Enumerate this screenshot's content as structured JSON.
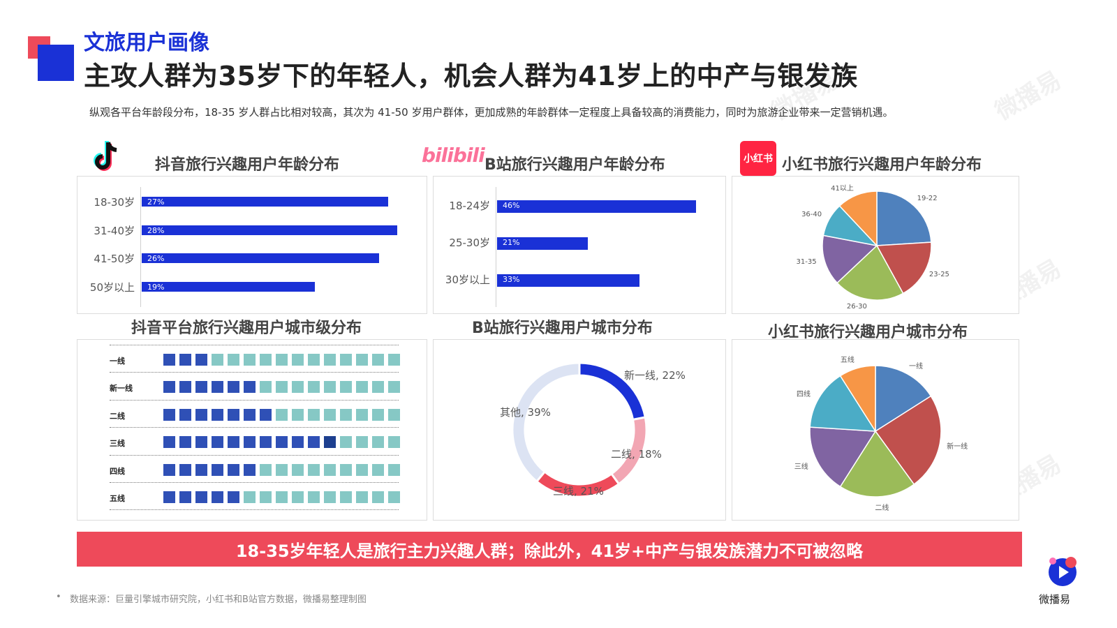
{
  "header": {
    "section": "文旅用户画像",
    "headline": "主攻人群为35岁下的年轻人，机会人群为41岁上的中产与银发族",
    "intro": "纵观各平台年龄段分布，18-35 岁人群占比相对较高，其次为 41-50 岁用户群体，更加成熟的年龄群体一定程度上具备较高的消费能力，同时为旅游企业带来一定营销机遇。"
  },
  "logos": {
    "bili": "bilibili",
    "xhs": "小红书"
  },
  "panel_titles": {
    "douyin_age": "抖音旅行兴趣用户年龄分布",
    "bili_age": "B站旅行兴趣用户年龄分布",
    "xhs_age": "小红书旅行兴趣用户年龄分布",
    "douyin_city": "抖音平台旅行兴趣用户城市级分布",
    "bili_city": "B站旅行兴趣用户城市分布",
    "xhs_city": "小红书旅行兴趣用户城市分布"
  },
  "chart_data": [
    {
      "id": "douyin_age",
      "type": "bar",
      "orientation": "horizontal",
      "title": "抖音旅行兴趣用户年龄分布",
      "categories": [
        "18-30岁",
        "31-40岁",
        "41-50岁",
        "50岁以上"
      ],
      "values": [
        27,
        28,
        26,
        19
      ],
      "labels": [
        "27%",
        "28%",
        "26%",
        "19%"
      ],
      "xlim": [
        0,
        28
      ],
      "color": "#1a31d6"
    },
    {
      "id": "bili_age",
      "type": "bar",
      "orientation": "horizontal",
      "title": "B站旅行兴趣用户年龄分布",
      "categories": [
        "18-24岁",
        "25-30岁",
        "30岁以上"
      ],
      "values": [
        46,
        21,
        33
      ],
      "labels": [
        "46%",
        "21%",
        "33%"
      ],
      "xlim": [
        0,
        46
      ],
      "color": "#1a31d6"
    },
    {
      "id": "xhs_age",
      "type": "pie",
      "title": "小红书旅行兴趣用户年龄分布",
      "categories": [
        "19-22",
        "23-25",
        "26-30",
        "31-35",
        "36-40",
        "41以上"
      ],
      "values": [
        24,
        18,
        21,
        15,
        10,
        12
      ],
      "colors": [
        "#4f81bd",
        "#c0504d",
        "#9bbb59",
        "#8064a2",
        "#4bacc6",
        "#f79646"
      ]
    },
    {
      "id": "douyin_city",
      "type": "table",
      "title": "抖音平台旅行兴趣用户城市级分布",
      "categories": [
        "一线",
        "新一线",
        "二线",
        "三线",
        "四线",
        "五线"
      ],
      "values": [
        3,
        6,
        7,
        11,
        6,
        5
      ],
      "total": 15,
      "colors": {
        "filled": "#2f50b6",
        "empty": "#86c8c5",
        "highlight": "#1d3f8f"
      }
    },
    {
      "id": "bili_city",
      "type": "pie",
      "variant": "donut",
      "title": "B站旅行兴趣用户城市分布",
      "categories": [
        "新一线",
        "二线",
        "三线",
        "其他"
      ],
      "values": [
        22,
        18,
        21,
        39
      ],
      "labels": [
        "新一线, 22%",
        "二线, 18%",
        "三线, 21%",
        "其他, 39%"
      ],
      "colors": [
        "#1a31d6",
        "#f2a6b3",
        "#ee4a5a",
        "#dce3f3"
      ]
    },
    {
      "id": "xhs_city",
      "type": "pie",
      "title": "小红书旅行兴趣用户城市分布",
      "categories": [
        "一线",
        "新一线",
        "二线",
        "三线",
        "四线",
        "五线"
      ],
      "values": [
        16,
        24,
        19,
        17,
        15,
        9
      ],
      "colors": [
        "#4f81bd",
        "#c0504d",
        "#9bbb59",
        "#8064a2",
        "#4bacc6",
        "#f79646"
      ]
    }
  ],
  "banner": "18-35岁年轻人是旅行主力兴趣人群；除此外，41岁+中产与银发族潜力不可被忽略",
  "footer": {
    "bullet": "•",
    "source": "数据来源：巨量引擎城市研究院，小红书和B站官方数据，微播易整理制图",
    "brand": "微播易"
  },
  "watermark": "微播易"
}
